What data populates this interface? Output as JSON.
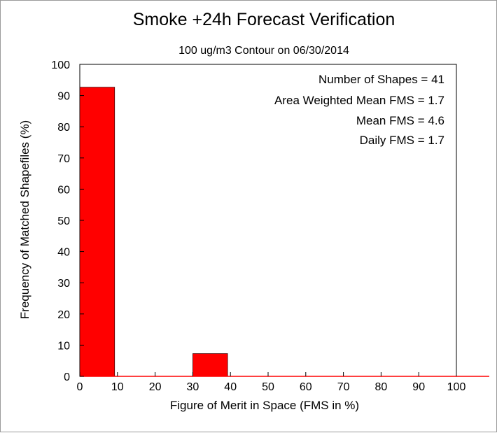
{
  "chart_data": {
    "type": "bar",
    "title": "Smoke +24h Forecast Verification",
    "subtitle": "100 ug/m3 Contour on 06/30/2014",
    "xlabel": "Figure of Merit in Space (FMS in %)",
    "ylabel": "Frequency of Matched Shapefiles (%)",
    "xlim": [
      0,
      100
    ],
    "ylim": [
      0,
      100
    ],
    "xticks": [
      "0",
      "10",
      "20",
      "30",
      "40",
      "50",
      "60",
      "70",
      "80",
      "90",
      "100"
    ],
    "yticks": [
      "0",
      "10",
      "20",
      "30",
      "40",
      "50",
      "60",
      "70",
      "80",
      "90",
      "100"
    ],
    "bins": [
      {
        "start": 0,
        "end": 10,
        "value": 92.7
      },
      {
        "start": 10,
        "end": 20,
        "value": 0
      },
      {
        "start": 20,
        "end": 30,
        "value": 0
      },
      {
        "start": 30,
        "end": 40,
        "value": 7.3
      },
      {
        "start": 40,
        "end": 50,
        "value": 0
      },
      {
        "start": 50,
        "end": 60,
        "value": 0
      },
      {
        "start": 60,
        "end": 70,
        "value": 0
      },
      {
        "start": 70,
        "end": 80,
        "value": 0
      },
      {
        "start": 80,
        "end": 90,
        "value": 0
      },
      {
        "start": 90,
        "end": 100,
        "value": 0
      }
    ],
    "bar_color": "#ff0000",
    "grid": false,
    "annotations": [
      "Number of Shapes = 41",
      "Area Weighted Mean FMS = 1.7",
      "Mean FMS = 4.6",
      "Daily FMS = 1.7"
    ]
  }
}
